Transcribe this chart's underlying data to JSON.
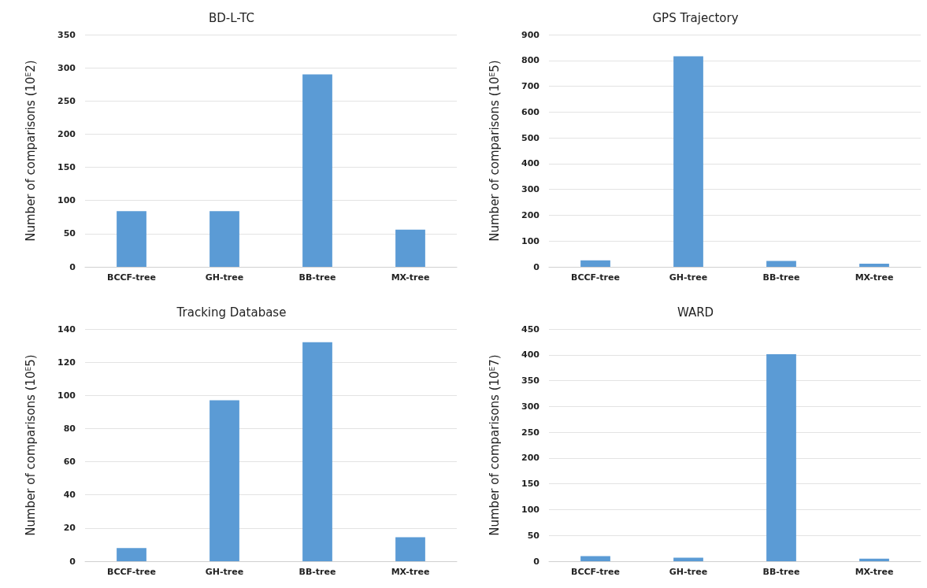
{
  "chart_data": [
    {
      "type": "bar",
      "title": "BD-L-TC",
      "ylabel": "Number of comparisons (10$^{E}$2)",
      "categories": [
        "BCCF-tree",
        "GH-tree",
        "BB-tree",
        "MX-tree"
      ],
      "values": [
        84,
        84,
        290,
        56
      ],
      "color": "#5b9bd5",
      "ylim": [
        0,
        350
      ],
      "yticks": [
        0,
        50,
        100,
        150,
        200,
        250,
        300,
        350
      ],
      "grid": "y"
    },
    {
      "type": "bar",
      "title": "GPS Trajectory",
      "ylabel": "Number of comparisons (10$^{E}$5)",
      "categories": [
        "BCCF-tree",
        "GH-tree",
        "BB-tree",
        "MX-tree"
      ],
      "values": [
        25,
        816,
        23,
        12
      ],
      "color": "#5b9bd5",
      "ylim": [
        0,
        900
      ],
      "yticks": [
        0,
        100,
        200,
        300,
        400,
        500,
        600,
        700,
        800,
        900
      ],
      "grid": "y"
    },
    {
      "type": "bar",
      "title": "Tracking Database",
      "ylabel": "Number of comparisons (10$^{E}$5)",
      "categories": [
        "BCCF-tree",
        "GH-tree",
        "BB-tree",
        "MX-tree"
      ],
      "values": [
        8,
        97,
        132,
        14.5
      ],
      "color": "#5b9bd5",
      "ylim": [
        0,
        140
      ],
      "yticks": [
        0,
        20,
        40,
        60,
        80,
        100,
        120,
        140
      ],
      "grid": "y"
    },
    {
      "type": "bar",
      "title": "WARD",
      "ylabel": "Number of comparisons (10$^{E}$7)",
      "categories": [
        "BCCF-tree",
        "GH-tree",
        "BB-tree",
        "MX-tree"
      ],
      "values": [
        10,
        7,
        401,
        5
      ],
      "color": "#5b9bd5",
      "ylim": [
        0,
        450
      ],
      "yticks": [
        0,
        50,
        100,
        150,
        200,
        250,
        300,
        350,
        400,
        450
      ],
      "grid": "y"
    }
  ]
}
